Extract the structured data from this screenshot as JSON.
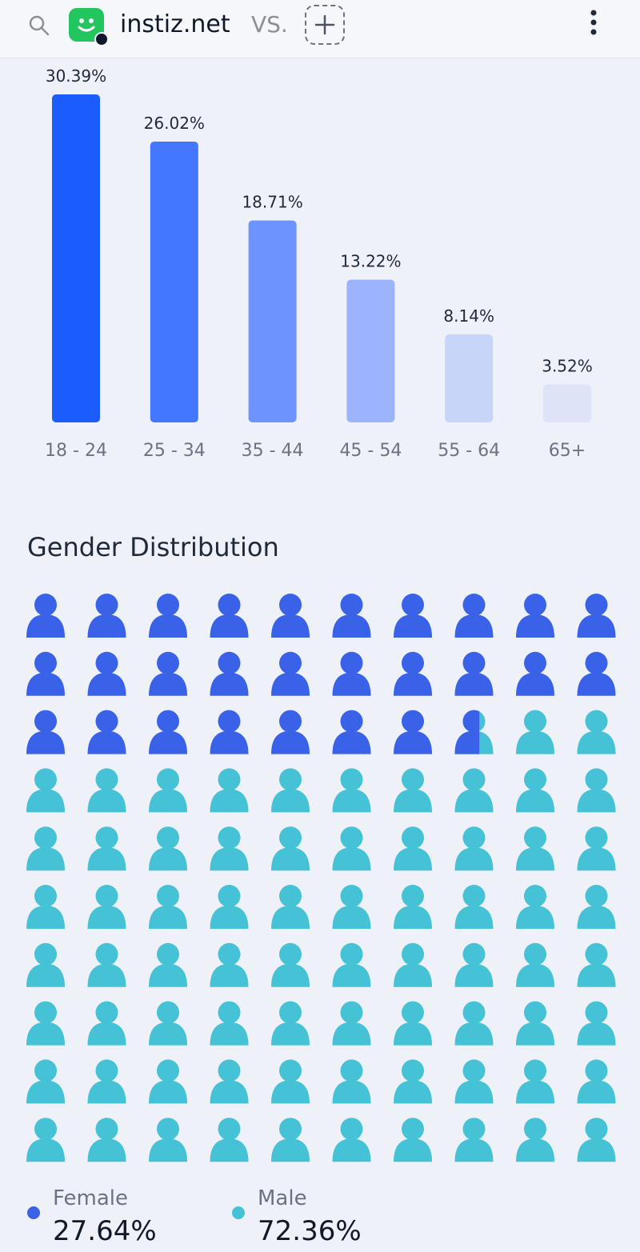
{
  "header": {
    "site_name": "instiz.net",
    "vs_label": "VS."
  },
  "colors": {
    "female": "#3a62e8",
    "male": "#45c2d6",
    "age_bars": [
      "#1b5cff",
      "#4377ff",
      "#6d93ff",
      "#9bb4fb",
      "#c7d5f9",
      "#dde4f8"
    ]
  },
  "chart_data": [
    {
      "type": "bar",
      "title": "",
      "categories": [
        "18 - 24",
        "25 - 34",
        "35 - 44",
        "45 - 54",
        "55 - 64",
        "65+"
      ],
      "values": [
        30.39,
        26.02,
        18.71,
        13.22,
        8.14,
        3.52
      ],
      "value_labels": [
        "30.39%",
        "26.02%",
        "18.71%",
        "13.22%",
        "8.14%",
        "3.52%"
      ],
      "xlabel": "",
      "ylabel": "",
      "ylim": [
        0,
        30.39
      ],
      "grid": false
    },
    {
      "type": "waffle",
      "title": "Gender Distribution",
      "total_icons": 100,
      "series": [
        {
          "name": "Female",
          "value": 27.64,
          "label": "27.64%"
        },
        {
          "name": "Male",
          "value": 72.36,
          "label": "72.36%"
        }
      ]
    }
  ]
}
